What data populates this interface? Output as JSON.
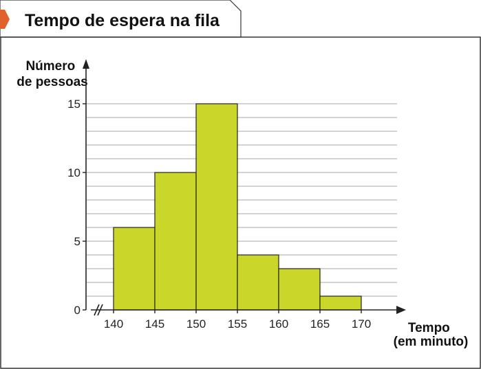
{
  "chart_data": {
    "type": "bar",
    "title": "Tempo de espera na fila",
    "ylabel_lines": [
      "Número",
      "de pessoas"
    ],
    "xlabel_lines": [
      "Tempo",
      "(em minuto)"
    ],
    "x_ticks": [
      140,
      145,
      150,
      155,
      160,
      165,
      170
    ],
    "bins": [
      {
        "start": 140,
        "end": 145,
        "value": 6
      },
      {
        "start": 145,
        "end": 150,
        "value": 10
      },
      {
        "start": 150,
        "end": 155,
        "value": 15
      },
      {
        "start": 155,
        "end": 160,
        "value": 4
      },
      {
        "start": 160,
        "end": 165,
        "value": 3
      },
      {
        "start": 165,
        "end": 170,
        "value": 1
      }
    ],
    "y_ticks": [
      0,
      5,
      10,
      15
    ],
    "ylim": [
      0,
      15
    ],
    "xlim": [
      140,
      170
    ],
    "grid": true,
    "grid_step": 1,
    "axis_break": true,
    "colors": {
      "bar": "#cbd62a",
      "accent": "#e0622a",
      "grid": "#a5a5a5"
    }
  }
}
